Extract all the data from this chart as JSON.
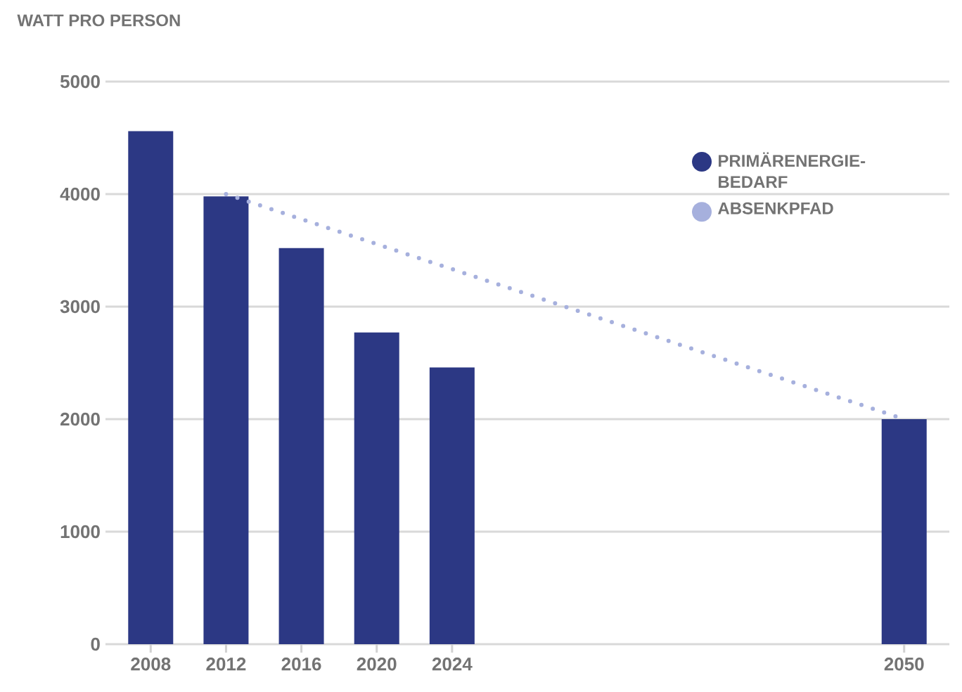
{
  "chart_data": {
    "type": "bar",
    "title": "WATT PRO PERSON",
    "categories": [
      "2008",
      "2012",
      "2016",
      "2020",
      "2024",
      null,
      null,
      null,
      null,
      null,
      "2050"
    ],
    "series": [
      {
        "name": "PRIMÄRENERGIE-BEDARF",
        "color": "#2c3884",
        "values": [
          4560,
          3980,
          3520,
          2770,
          2460,
          null,
          null,
          null,
          null,
          null,
          2000
        ]
      },
      {
        "name": "ABSENKPFAD",
        "type": "line",
        "color": "#a6b0dd",
        "line_style": "dotted",
        "values": [
          null,
          4000,
          null,
          null,
          null,
          null,
          null,
          null,
          null,
          null,
          2000
        ]
      }
    ],
    "ylim": [
      0,
      5000
    ],
    "yticks": [
      0,
      1000,
      2000,
      3000,
      4000,
      5000
    ],
    "grid": "y",
    "legend": "top right"
  }
}
